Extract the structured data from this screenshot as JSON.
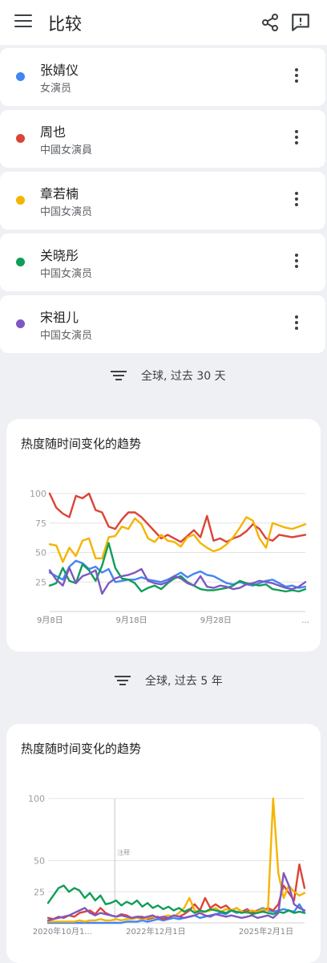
{
  "header": {
    "title": "比较",
    "menu_icon": "hamburger-menu-icon",
    "share_icon": "share-icon",
    "feedback_icon": "feedback-icon"
  },
  "terms": [
    {
      "name": "张婧仪",
      "description": "女演员",
      "color": "#4285f4"
    },
    {
      "name": "周也",
      "description": "中國女演員",
      "color": "#db4437"
    },
    {
      "name": "章若楠",
      "description": "中国女演员",
      "color": "#f4b400"
    },
    {
      "name": "关晓彤",
      "description": "中国女演员",
      "color": "#0f9d58"
    },
    {
      "name": "宋祖儿",
      "description": "中国女演员",
      "color": "#7e57c2"
    }
  ],
  "filters": [
    {
      "label": "全球, 过去 30 天"
    },
    {
      "label": "全球, 过去 5 年"
    }
  ],
  "charts": [
    {
      "title": "热度随时间变化的趋势"
    },
    {
      "title": "热度随时间变化的趋势"
    }
  ],
  "chart_data": [
    {
      "type": "line",
      "title": "热度随时间变化的趋势",
      "x_tick_labels": [
        "9月8日",
        "9月18日",
        "9月28日",
        "..."
      ],
      "y_tick_labels": [
        "100",
        "75",
        "50",
        "25"
      ],
      "ylim": [
        0,
        100
      ],
      "grid": true,
      "series": [
        {
          "name": "张婧仪",
          "color": "#4285f4",
          "values": [
            33,
            30,
            27,
            38,
            43,
            41,
            36,
            38,
            33,
            36,
            25,
            26,
            27,
            27,
            29,
            27,
            26,
            25,
            27,
            30,
            33,
            29,
            32,
            34,
            31,
            30,
            27,
            24,
            23,
            25,
            23,
            22,
            24,
            26,
            27,
            24,
            21,
            22,
            20,
            21
          ]
        },
        {
          "name": "周也",
          "color": "#db4437",
          "values": [
            100,
            88,
            83,
            80,
            98,
            96,
            100,
            86,
            84,
            72,
            70,
            78,
            84,
            84,
            80,
            74,
            68,
            62,
            65,
            62,
            59,
            64,
            69,
            63,
            81,
            60,
            62,
            59,
            62,
            64,
            68,
            74,
            70,
            62,
            60,
            65,
            64,
            63,
            64,
            65
          ]
        },
        {
          "name": "章若楠",
          "color": "#f4b400",
          "values": [
            57,
            56,
            42,
            54,
            47,
            60,
            62,
            45,
            45,
            63,
            64,
            72,
            70,
            79,
            74,
            62,
            59,
            65,
            60,
            59,
            55,
            63,
            65,
            58,
            54,
            51,
            53,
            57,
            63,
            71,
            80,
            77,
            62,
            54,
            75,
            73,
            71,
            70,
            72,
            74
          ]
        },
        {
          "name": "关晓彤",
          "color": "#0f9d58",
          "values": [
            22,
            24,
            37,
            26,
            24,
            40,
            35,
            26,
            39,
            58,
            37,
            28,
            27,
            24,
            17,
            20,
            22,
            19,
            24,
            28,
            30,
            25,
            22,
            19,
            18,
            18,
            19,
            20,
            22,
            26,
            24,
            23,
            22,
            23,
            19,
            18,
            17,
            18,
            17,
            19
          ]
        },
        {
          "name": "宋祖儿",
          "color": "#7e57c2",
          "values": [
            35,
            27,
            22,
            37,
            24,
            30,
            32,
            35,
            15,
            24,
            28,
            30,
            31,
            33,
            36,
            26,
            24,
            23,
            25,
            30,
            28,
            24,
            22,
            30,
            21,
            20,
            22,
            21,
            19,
            20,
            23,
            24,
            26,
            25,
            24,
            22,
            20,
            19,
            21,
            25
          ]
        }
      ]
    },
    {
      "type": "line",
      "title": "热度随时间变化的趋势",
      "x_tick_labels": [
        "2020年10月1...",
        "2022年12月1日",
        "2025年2月1日"
      ],
      "y_tick_labels": [
        "100",
        "50",
        "25"
      ],
      "ylim": [
        0,
        100
      ],
      "grid": true,
      "annotation": "注释",
      "series": [
        {
          "name": "张婧仪",
          "color": "#4285f4",
          "values": [
            0,
            0,
            0,
            0,
            0,
            0,
            0,
            0,
            0,
            0,
            0,
            0,
            0,
            0,
            0,
            1,
            1,
            1,
            2,
            1,
            2,
            3,
            2,
            3,
            4,
            3,
            4,
            5,
            6,
            4,
            5,
            6,
            7,
            8,
            7,
            10,
            8,
            9,
            8,
            9,
            10,
            12,
            10,
            9,
            10,
            11,
            10,
            9,
            15,
            8
          ]
        },
        {
          "name": "周也",
          "color": "#db4437",
          "values": [
            4,
            3,
            5,
            4,
            6,
            5,
            8,
            9,
            10,
            7,
            12,
            8,
            6,
            5,
            7,
            6,
            4,
            5,
            5,
            3,
            4,
            5,
            3,
            4,
            6,
            5,
            7,
            10,
            15,
            10,
            20,
            12,
            15,
            12,
            14,
            10,
            12,
            9,
            11,
            8,
            10,
            9,
            12,
            10,
            15,
            30,
            24,
            18,
            47,
            28
          ]
        },
        {
          "name": "章若楠",
          "color": "#f4b400",
          "values": [
            1,
            1,
            1,
            1,
            1,
            1,
            2,
            1,
            2,
            2,
            3,
            2,
            2,
            3,
            2,
            3,
            3,
            4,
            3,
            4,
            5,
            4,
            5,
            6,
            5,
            8,
            12,
            20,
            10,
            8,
            9,
            10,
            12,
            9,
            11,
            10,
            12,
            9,
            8,
            10,
            9,
            11,
            10,
            100,
            40,
            20,
            30,
            25,
            22,
            24
          ]
        },
        {
          "name": "关晓彤",
          "color": "#0f9d58",
          "values": [
            16,
            22,
            28,
            30,
            25,
            28,
            26,
            20,
            24,
            18,
            22,
            15,
            16,
            18,
            14,
            17,
            15,
            18,
            13,
            16,
            12,
            14,
            11,
            13,
            10,
            12,
            9,
            11,
            8,
            10,
            9,
            11,
            10,
            9,
            8,
            10,
            9,
            8,
            9,
            7,
            8,
            9,
            8,
            7,
            9,
            8,
            10,
            8,
            9,
            8
          ]
        },
        {
          "name": "宋祖儿",
          "color": "#7e57c2",
          "values": [
            2,
            3,
            4,
            5,
            6,
            8,
            10,
            12,
            8,
            6,
            8,
            7,
            6,
            5,
            6,
            5,
            4,
            5,
            4,
            5,
            6,
            4,
            5,
            4,
            6,
            5,
            4,
            5,
            6,
            8,
            6,
            5,
            7,
            6,
            5,
            6,
            5,
            4,
            5,
            6,
            4,
            5,
            6,
            4,
            8,
            40,
            30,
            15,
            12,
            10
          ]
        }
      ]
    }
  ]
}
